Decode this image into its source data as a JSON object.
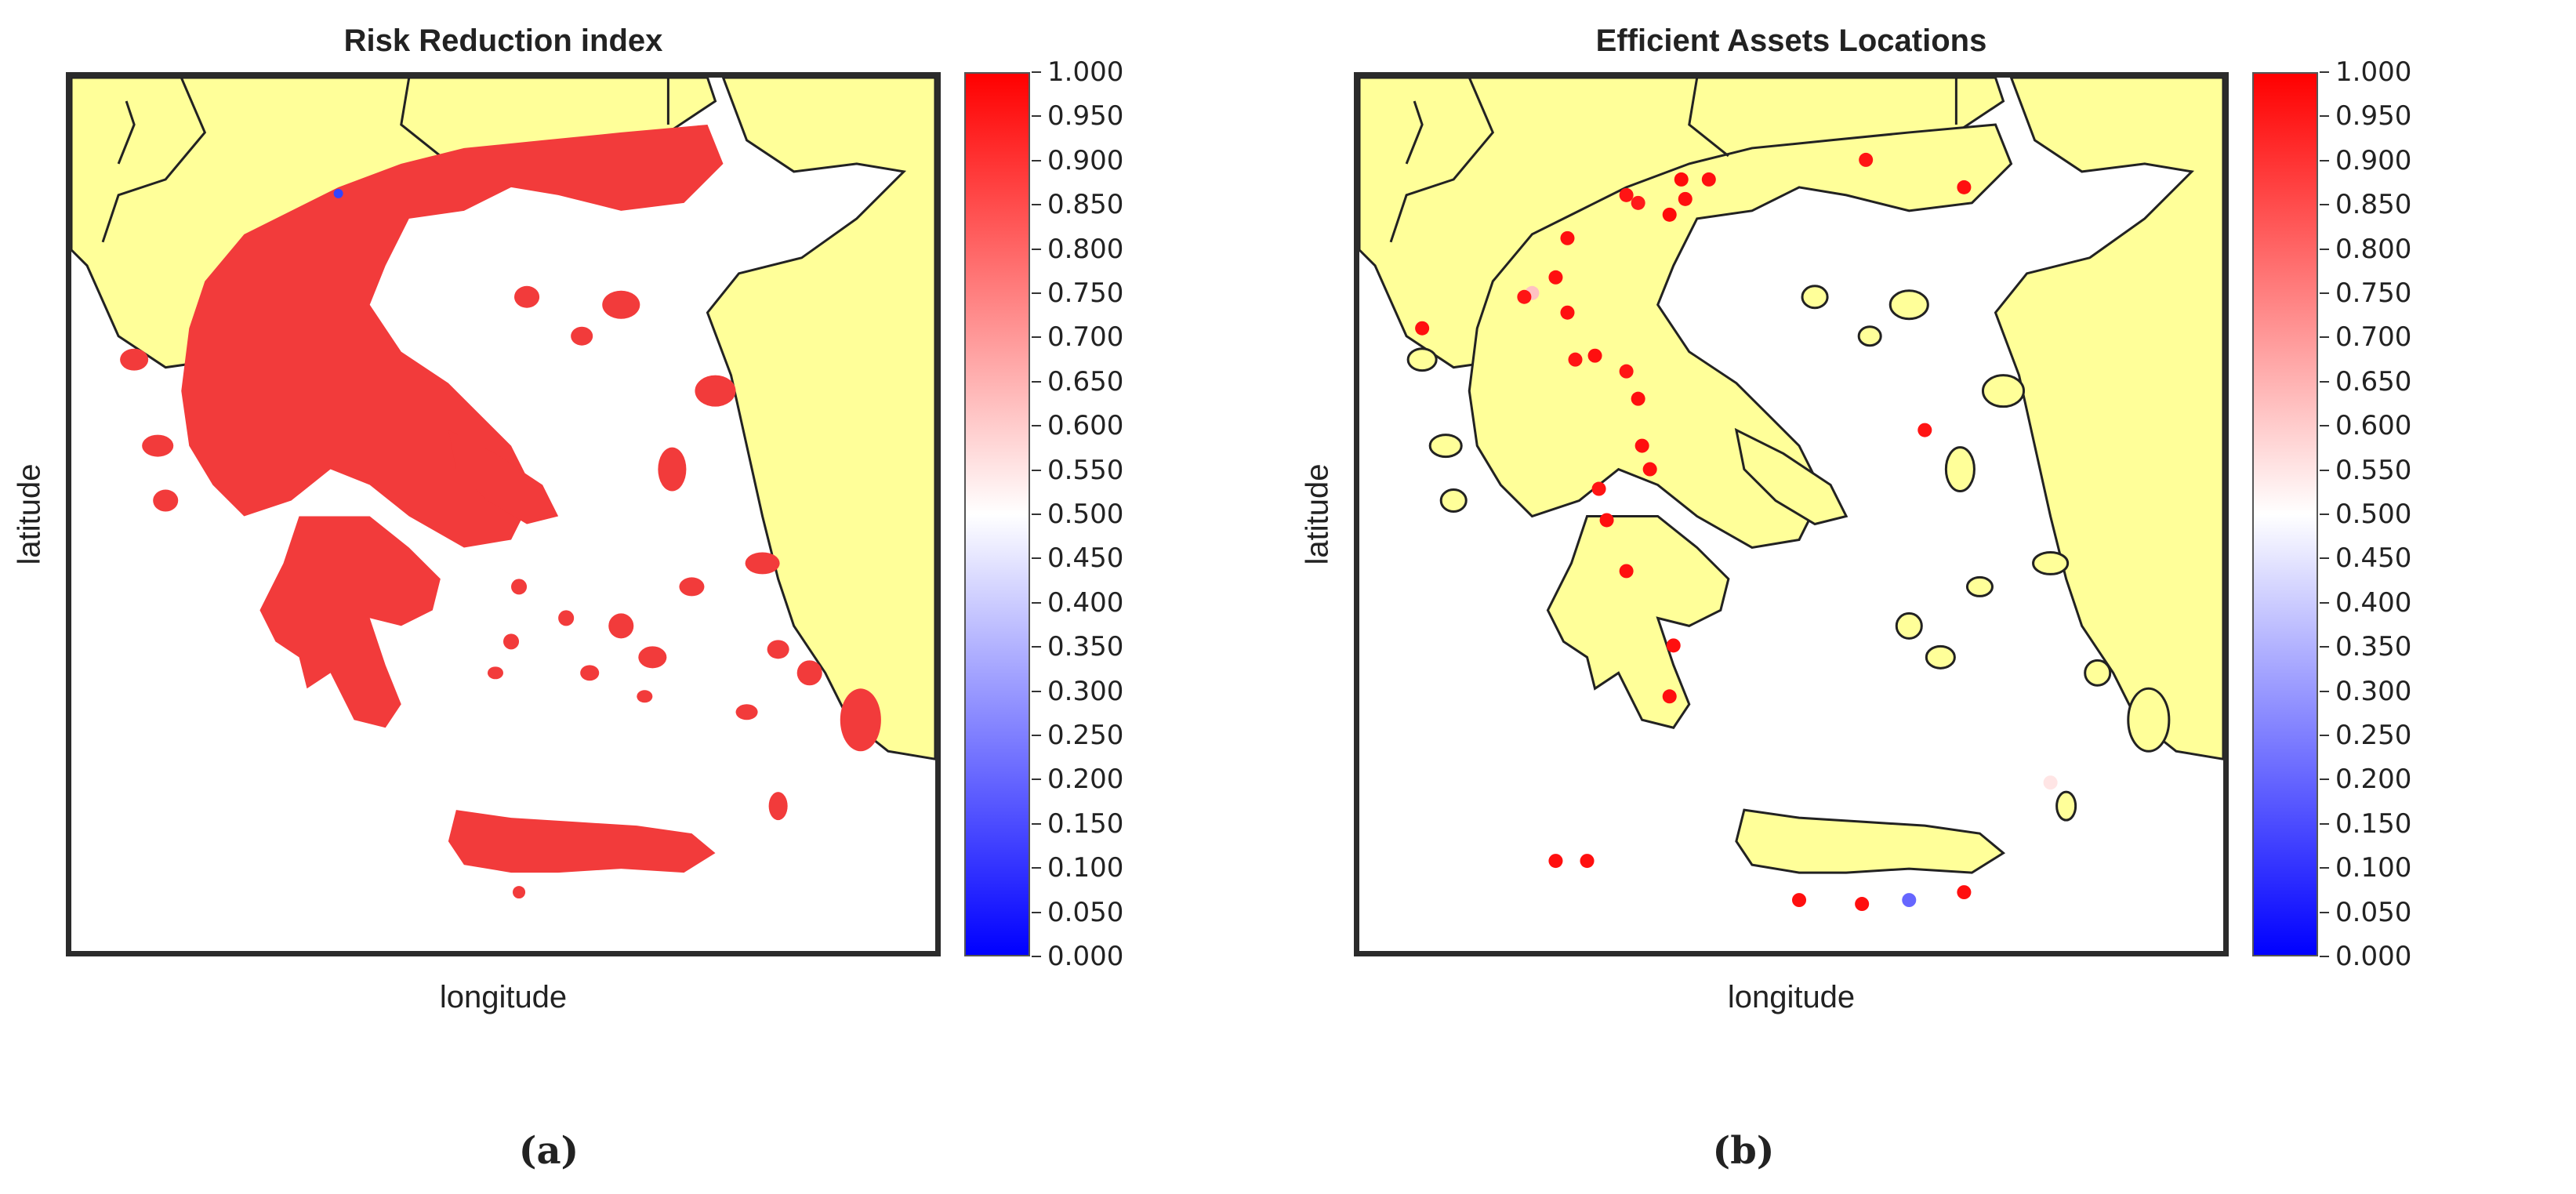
{
  "panels": [
    {
      "title": "Risk Reduction index",
      "xlabel": "longitude",
      "ylabel": "latitude",
      "sublabel": "(a)",
      "map_type": "risk-heat-overlay",
      "overlay_value_typical": 0.93
    },
    {
      "title": "Efficient Assets Locations",
      "xlabel": "longitude",
      "ylabel": "latitude",
      "sublabel": "(b)",
      "map_type": "asset-points"
    }
  ],
  "colorbar": {
    "min": 0.0,
    "max": 1.0,
    "ticks": [
      "0.000",
      "0.050",
      "0.100",
      "0.150",
      "0.200",
      "0.250",
      "0.300",
      "0.350",
      "0.400",
      "0.450",
      "0.500",
      "0.550",
      "0.600",
      "0.650",
      "0.700",
      "0.750",
      "0.800",
      "0.850",
      "0.900",
      "0.950",
      "1.000"
    ],
    "colors": {
      "low": "#0000ff",
      "mid": "#ffffff",
      "high": "#ff0000"
    }
  },
  "map_colors": {
    "land": "#ffff99",
    "sea": "#ffffff",
    "border": "#222222",
    "risk": "#f23b3b"
  },
  "asset_values": [
    0.98,
    0.97,
    0.97,
    0.98,
    0.96,
    0.95,
    0.97,
    0.97,
    0.62,
    0.97,
    0.96,
    0.96,
    0.97,
    0.97,
    0.97,
    0.96,
    0.97,
    0.97,
    0.96,
    0.97,
    0.97,
    0.97,
    0.97,
    0.96,
    0.97,
    0.97,
    0.97,
    0.96,
    0.97,
    0.97,
    0.97,
    0.2,
    0.55
  ]
}
